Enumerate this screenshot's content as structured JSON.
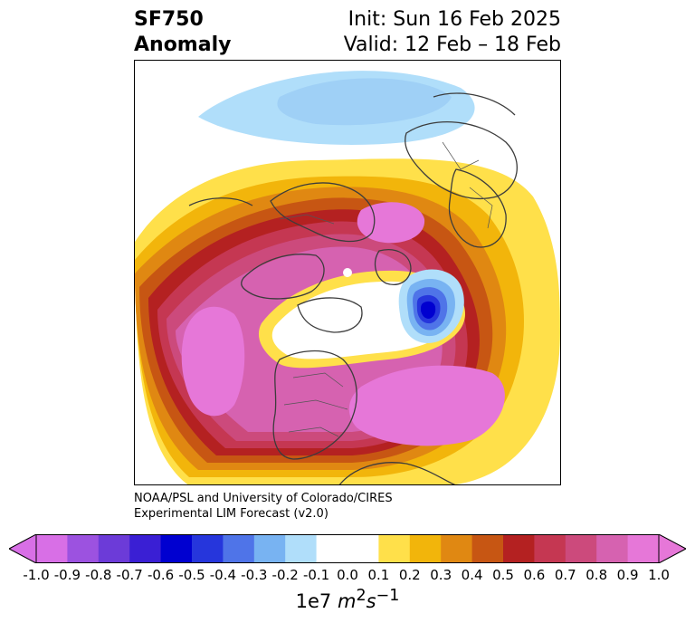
{
  "header": {
    "variable": "SF750",
    "field": "Anomaly",
    "init": "Init: Sun 16 Feb 2025",
    "valid": "Valid: 12 Feb – 18 Feb"
  },
  "credit": {
    "line1": "NOAA/PSL and University of Colorado/CIRES",
    "line2": "Experimental LIM Forecast (v2.0)"
  },
  "colorbar": {
    "ticks": [
      "-1.0",
      "-0.9",
      "-0.8",
      "-0.7",
      "-0.6",
      "-0.5",
      "-0.4",
      "-0.3",
      "-0.2",
      "-0.1",
      "0.0",
      "0.1",
      "0.2",
      "0.3",
      "0.4",
      "0.5",
      "0.6",
      "0.7",
      "0.8",
      "0.9",
      "1.0"
    ],
    "colors": [
      "#d86fe6",
      "#9c52e0",
      "#6c3bd8",
      "#3a1fd4",
      "#0000d0",
      "#2636dc",
      "#4f74e8",
      "#78b3f2",
      "#b0defa",
      "#ffffff",
      "#ffffff",
      "#ffe04a",
      "#f2b50b",
      "#e08812",
      "#c75613",
      "#b42121",
      "#c53752",
      "#cc4a7c",
      "#d662b0",
      "#e677d8"
    ],
    "units_prefix": "1e7 ",
    "units_m": "m",
    "units_m_exp": "2",
    "units_s": "s",
    "units_s_exp": "−1"
  },
  "map": {
    "projection": "north-polar-stereographic",
    "level": "750 hPa",
    "field": "streamfunction anomaly"
  }
}
